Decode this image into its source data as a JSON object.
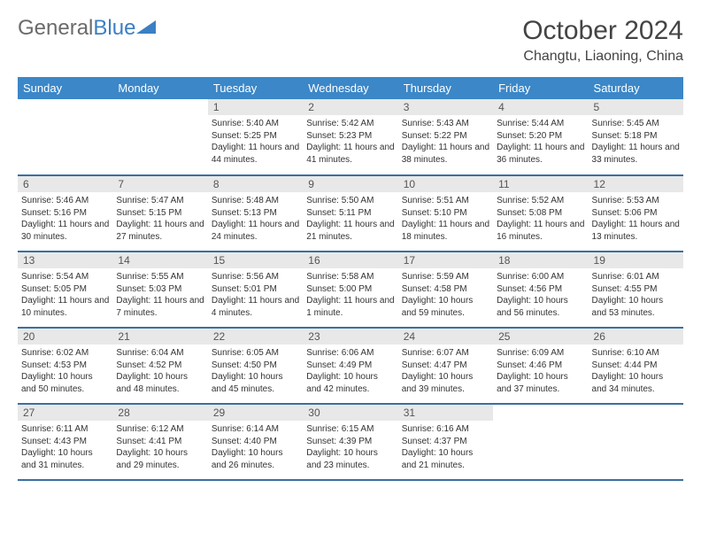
{
  "brand": {
    "part1": "General",
    "part2": "Blue"
  },
  "title": "October 2024",
  "location": "Changtu, Liaoning, China",
  "colors": {
    "header_bg": "#3b87c8",
    "header_text": "#ffffff",
    "daynum_bg": "#e8e8e8",
    "row_border": "#3b6fa0",
    "text": "#333333",
    "logo_gray": "#6b6b6b",
    "logo_blue": "#3b7fc4"
  },
  "day_headers": [
    "Sunday",
    "Monday",
    "Tuesday",
    "Wednesday",
    "Thursday",
    "Friday",
    "Saturday"
  ],
  "weeks": [
    [
      null,
      null,
      {
        "n": "1",
        "sunrise": "Sunrise: 5:40 AM",
        "sunset": "Sunset: 5:25 PM",
        "daylight": "Daylight: 11 hours and 44 minutes."
      },
      {
        "n": "2",
        "sunrise": "Sunrise: 5:42 AM",
        "sunset": "Sunset: 5:23 PM",
        "daylight": "Daylight: 11 hours and 41 minutes."
      },
      {
        "n": "3",
        "sunrise": "Sunrise: 5:43 AM",
        "sunset": "Sunset: 5:22 PM",
        "daylight": "Daylight: 11 hours and 38 minutes."
      },
      {
        "n": "4",
        "sunrise": "Sunrise: 5:44 AM",
        "sunset": "Sunset: 5:20 PM",
        "daylight": "Daylight: 11 hours and 36 minutes."
      },
      {
        "n": "5",
        "sunrise": "Sunrise: 5:45 AM",
        "sunset": "Sunset: 5:18 PM",
        "daylight": "Daylight: 11 hours and 33 minutes."
      }
    ],
    [
      {
        "n": "6",
        "sunrise": "Sunrise: 5:46 AM",
        "sunset": "Sunset: 5:16 PM",
        "daylight": "Daylight: 11 hours and 30 minutes."
      },
      {
        "n": "7",
        "sunrise": "Sunrise: 5:47 AM",
        "sunset": "Sunset: 5:15 PM",
        "daylight": "Daylight: 11 hours and 27 minutes."
      },
      {
        "n": "8",
        "sunrise": "Sunrise: 5:48 AM",
        "sunset": "Sunset: 5:13 PM",
        "daylight": "Daylight: 11 hours and 24 minutes."
      },
      {
        "n": "9",
        "sunrise": "Sunrise: 5:50 AM",
        "sunset": "Sunset: 5:11 PM",
        "daylight": "Daylight: 11 hours and 21 minutes."
      },
      {
        "n": "10",
        "sunrise": "Sunrise: 5:51 AM",
        "sunset": "Sunset: 5:10 PM",
        "daylight": "Daylight: 11 hours and 18 minutes."
      },
      {
        "n": "11",
        "sunrise": "Sunrise: 5:52 AM",
        "sunset": "Sunset: 5:08 PM",
        "daylight": "Daylight: 11 hours and 16 minutes."
      },
      {
        "n": "12",
        "sunrise": "Sunrise: 5:53 AM",
        "sunset": "Sunset: 5:06 PM",
        "daylight": "Daylight: 11 hours and 13 minutes."
      }
    ],
    [
      {
        "n": "13",
        "sunrise": "Sunrise: 5:54 AM",
        "sunset": "Sunset: 5:05 PM",
        "daylight": "Daylight: 11 hours and 10 minutes."
      },
      {
        "n": "14",
        "sunrise": "Sunrise: 5:55 AM",
        "sunset": "Sunset: 5:03 PM",
        "daylight": "Daylight: 11 hours and 7 minutes."
      },
      {
        "n": "15",
        "sunrise": "Sunrise: 5:56 AM",
        "sunset": "Sunset: 5:01 PM",
        "daylight": "Daylight: 11 hours and 4 minutes."
      },
      {
        "n": "16",
        "sunrise": "Sunrise: 5:58 AM",
        "sunset": "Sunset: 5:00 PM",
        "daylight": "Daylight: 11 hours and 1 minute."
      },
      {
        "n": "17",
        "sunrise": "Sunrise: 5:59 AM",
        "sunset": "Sunset: 4:58 PM",
        "daylight": "Daylight: 10 hours and 59 minutes."
      },
      {
        "n": "18",
        "sunrise": "Sunrise: 6:00 AM",
        "sunset": "Sunset: 4:56 PM",
        "daylight": "Daylight: 10 hours and 56 minutes."
      },
      {
        "n": "19",
        "sunrise": "Sunrise: 6:01 AM",
        "sunset": "Sunset: 4:55 PM",
        "daylight": "Daylight: 10 hours and 53 minutes."
      }
    ],
    [
      {
        "n": "20",
        "sunrise": "Sunrise: 6:02 AM",
        "sunset": "Sunset: 4:53 PM",
        "daylight": "Daylight: 10 hours and 50 minutes."
      },
      {
        "n": "21",
        "sunrise": "Sunrise: 6:04 AM",
        "sunset": "Sunset: 4:52 PM",
        "daylight": "Daylight: 10 hours and 48 minutes."
      },
      {
        "n": "22",
        "sunrise": "Sunrise: 6:05 AM",
        "sunset": "Sunset: 4:50 PM",
        "daylight": "Daylight: 10 hours and 45 minutes."
      },
      {
        "n": "23",
        "sunrise": "Sunrise: 6:06 AM",
        "sunset": "Sunset: 4:49 PM",
        "daylight": "Daylight: 10 hours and 42 minutes."
      },
      {
        "n": "24",
        "sunrise": "Sunrise: 6:07 AM",
        "sunset": "Sunset: 4:47 PM",
        "daylight": "Daylight: 10 hours and 39 minutes."
      },
      {
        "n": "25",
        "sunrise": "Sunrise: 6:09 AM",
        "sunset": "Sunset: 4:46 PM",
        "daylight": "Daylight: 10 hours and 37 minutes."
      },
      {
        "n": "26",
        "sunrise": "Sunrise: 6:10 AM",
        "sunset": "Sunset: 4:44 PM",
        "daylight": "Daylight: 10 hours and 34 minutes."
      }
    ],
    [
      {
        "n": "27",
        "sunrise": "Sunrise: 6:11 AM",
        "sunset": "Sunset: 4:43 PM",
        "daylight": "Daylight: 10 hours and 31 minutes."
      },
      {
        "n": "28",
        "sunrise": "Sunrise: 6:12 AM",
        "sunset": "Sunset: 4:41 PM",
        "daylight": "Daylight: 10 hours and 29 minutes."
      },
      {
        "n": "29",
        "sunrise": "Sunrise: 6:14 AM",
        "sunset": "Sunset: 4:40 PM",
        "daylight": "Daylight: 10 hours and 26 minutes."
      },
      {
        "n": "30",
        "sunrise": "Sunrise: 6:15 AM",
        "sunset": "Sunset: 4:39 PM",
        "daylight": "Daylight: 10 hours and 23 minutes."
      },
      {
        "n": "31",
        "sunrise": "Sunrise: 6:16 AM",
        "sunset": "Sunset: 4:37 PM",
        "daylight": "Daylight: 10 hours and 21 minutes."
      },
      null,
      null
    ]
  ]
}
